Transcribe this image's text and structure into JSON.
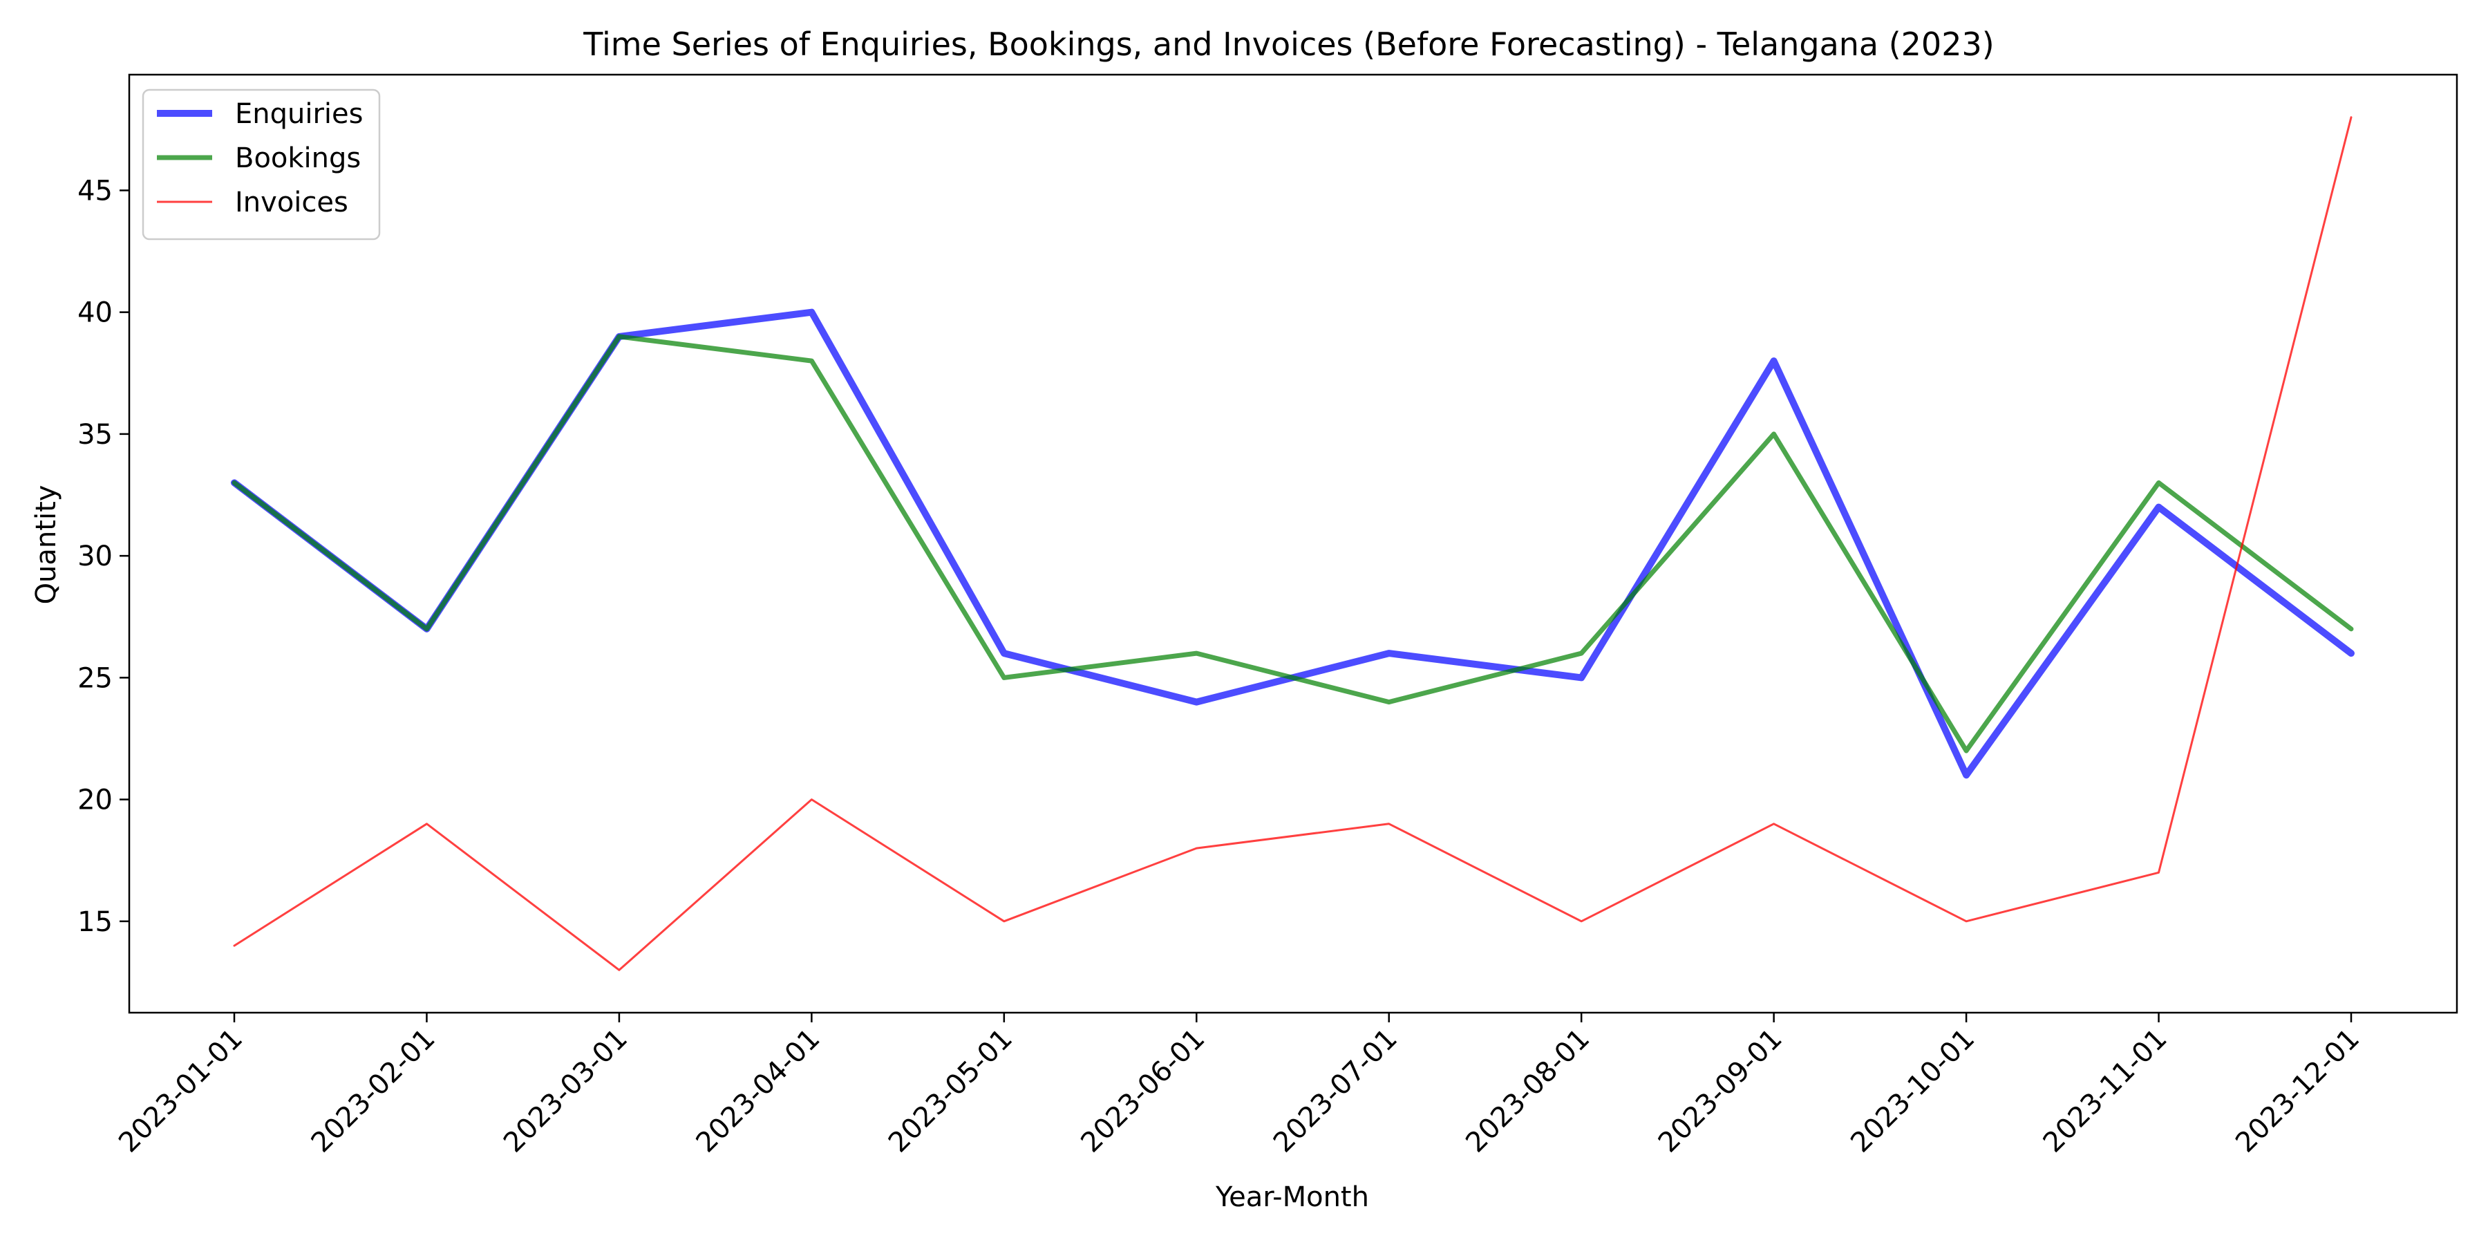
{
  "chart_data": {
    "type": "line",
    "title": "Time Series of Enquiries, Bookings, and Invoices (Before Forecasting) - Telangana (2023)",
    "xlabel": "Year-Month",
    "ylabel": "Quantity",
    "categories": [
      "2023-01-01",
      "2023-02-01",
      "2023-03-01",
      "2023-04-01",
      "2023-05-01",
      "2023-06-01",
      "2023-07-01",
      "2023-08-01",
      "2023-09-01",
      "2023-10-01",
      "2023-11-01",
      "2023-12-01"
    ],
    "yticks": [
      15,
      20,
      25,
      30,
      35,
      40,
      45
    ],
    "ylim": [
      11.25,
      49.75
    ],
    "grid": false,
    "legend_position": "top-left",
    "series": [
      {
        "name": "Enquiries",
        "color": "#0000ff",
        "opacity": 0.7,
        "weight": "thick",
        "values": [
          33,
          27,
          39,
          40,
          26,
          24,
          26,
          25,
          38,
          21,
          32,
          26
        ]
      },
      {
        "name": "Bookings",
        "color": "#008000",
        "opacity": 0.7,
        "weight": "medium",
        "values": [
          33,
          27,
          39,
          38,
          25,
          26,
          24,
          26,
          35,
          22,
          33,
          27
        ]
      },
      {
        "name": "Invoices",
        "color": "#ff0000",
        "opacity": 0.75,
        "weight": "thin",
        "values": [
          14,
          19,
          13,
          20,
          15,
          18,
          19,
          15,
          19,
          15,
          17,
          48
        ]
      }
    ]
  }
}
